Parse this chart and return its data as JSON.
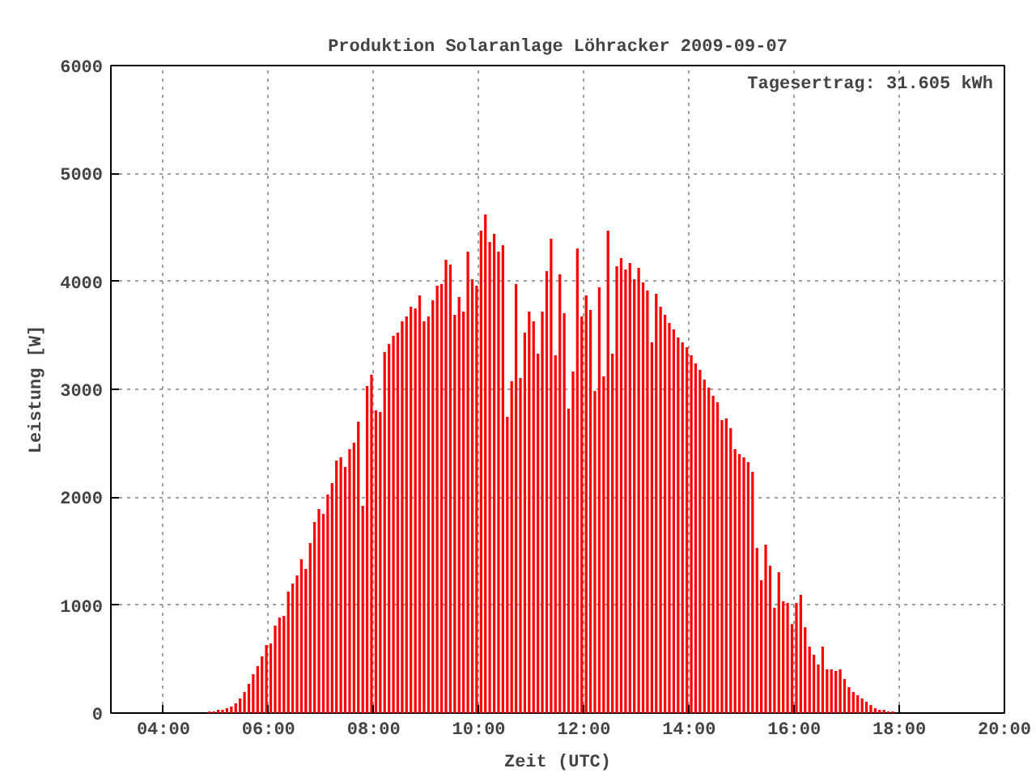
{
  "chart_data": {
    "type": "bar",
    "title": "Produktion Solaranlage Löhracker 2009-09-07",
    "xlabel": "Zeit (UTC)",
    "ylabel": "Leistung [W]",
    "annotations": [
      "Tagesertrag: 31.605 kWh"
    ],
    "x": [
      4.875,
      4.958,
      5.042,
      5.125,
      5.208,
      5.292,
      5.375,
      5.458,
      5.542,
      5.625,
      5.708,
      5.792,
      5.875,
      5.958,
      6.042,
      6.125,
      6.208,
      6.292,
      6.375,
      6.458,
      6.542,
      6.625,
      6.708,
      6.792,
      6.875,
      6.958,
      7.042,
      7.125,
      7.208,
      7.292,
      7.375,
      7.458,
      7.542,
      7.625,
      7.708,
      7.792,
      7.875,
      7.958,
      8.042,
      8.125,
      8.208,
      8.292,
      8.375,
      8.458,
      8.542,
      8.625,
      8.708,
      8.792,
      8.875,
      8.958,
      9.042,
      9.125,
      9.208,
      9.292,
      9.375,
      9.458,
      9.542,
      9.625,
      9.708,
      9.792,
      9.875,
      9.958,
      10.042,
      10.125,
      10.208,
      10.292,
      10.375,
      10.458,
      10.542,
      10.625,
      10.708,
      10.792,
      10.875,
      10.958,
      11.042,
      11.125,
      11.208,
      11.292,
      11.375,
      11.458,
      11.542,
      11.625,
      11.708,
      11.792,
      11.875,
      11.958,
      12.042,
      12.125,
      12.208,
      12.292,
      12.375,
      12.458,
      12.542,
      12.625,
      12.708,
      12.792,
      12.875,
      12.958,
      13.042,
      13.125,
      13.208,
      13.292,
      13.375,
      13.458,
      13.542,
      13.625,
      13.708,
      13.792,
      13.875,
      13.958,
      14.042,
      14.125,
      14.208,
      14.292,
      14.375,
      14.458,
      14.542,
      14.625,
      14.708,
      14.792,
      14.875,
      14.958,
      15.042,
      15.125,
      15.208,
      15.292,
      15.375,
      15.458,
      15.542,
      15.625,
      15.708,
      15.792,
      15.875,
      15.958,
      16.042,
      16.125,
      16.208,
      16.292,
      16.375,
      16.458,
      16.542,
      16.625,
      16.708,
      16.792,
      16.875,
      16.958,
      17.042,
      17.125,
      17.208,
      17.292,
      17.375,
      17.458,
      17.542,
      17.625,
      17.708,
      17.792,
      17.875
    ],
    "series": [
      {
        "color": "#ff0000",
        "values": [
          15,
          15,
          30,
          30,
          45,
          60,
          90,
          135,
          195,
          270,
          360,
          435,
          525,
          630,
          645,
          810,
          885,
          900,
          1125,
          1200,
          1275,
          1425,
          1335,
          1575,
          1770,
          1890,
          1845,
          2025,
          2130,
          2340,
          2370,
          2280,
          2445,
          2505,
          2700,
          1920,
          3030,
          3135,
          2805,
          2790,
          3345,
          3420,
          3495,
          3525,
          3630,
          3675,
          3765,
          3750,
          3870,
          3630,
          3675,
          3825,
          3960,
          3975,
          4200,
          4155,
          3690,
          3855,
          3720,
          4275,
          4020,
          3960,
          4470,
          4620,
          4365,
          4440,
          4275,
          4335,
          2745,
          3075,
          3975,
          3105,
          3525,
          3720,
          3630,
          3330,
          3720,
          4095,
          4395,
          3315,
          4065,
          3705,
          2820,
          3165,
          4305,
          3675,
          3870,
          3735,
          2985,
          3945,
          3120,
          4470,
          3330,
          4140,
          4215,
          4110,
          4170,
          4020,
          4125,
          3990,
          3915,
          3435,
          3885,
          3765,
          3690,
          3615,
          3555,
          3480,
          3435,
          3390,
          3315,
          3240,
          3180,
          3090,
          3015,
          2940,
          2880,
          2715,
          2730,
          2640,
          2445,
          2400,
          2370,
          2325,
          2235,
          1530,
          1230,
          1560,
          1365,
          975,
          1305,
          1035,
          1020,
          825,
          1020,
          1095,
          795,
          615,
          540,
          450,
          615,
          405,
          405,
          390,
          405,
          315,
          240,
          195,
          165,
          135,
          105,
          75,
          45,
          30,
          30,
          15,
          15
        ]
      }
    ],
    "xlim": [
      3,
      20
    ],
    "xticks": [
      {
        "value": 4,
        "label": "04:00"
      },
      {
        "value": 6,
        "label": "06:00"
      },
      {
        "value": 8,
        "label": "08:00"
      },
      {
        "value": 10,
        "label": "10:00"
      },
      {
        "value": 12,
        "label": "12:00"
      },
      {
        "value": 14,
        "label": "14:00"
      },
      {
        "value": 16,
        "label": "16:00"
      },
      {
        "value": 18,
        "label": "18:00"
      },
      {
        "value": 20,
        "label": "20:00"
      }
    ],
    "ylim": [
      0,
      6000
    ],
    "yticks": [
      0,
      1000,
      2000,
      3000,
      4000,
      5000,
      6000
    ],
    "grid": true
  }
}
